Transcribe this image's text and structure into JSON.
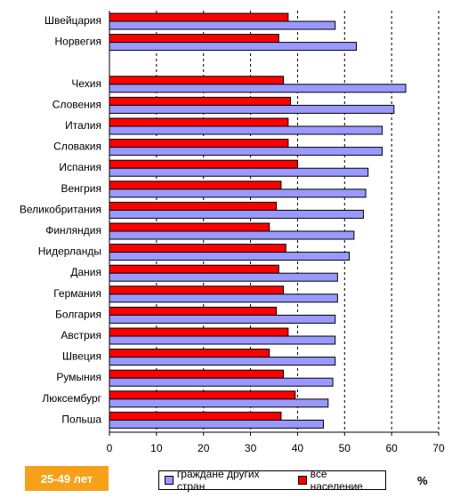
{
  "chart_data": {
    "type": "bar",
    "orientation": "horizontal",
    "categories": [
      "Швейцария",
      "Норвегия",
      "",
      "Чехия",
      "Словения",
      "Италия",
      "Словакия",
      "Испания",
      "Венгрия",
      "Великобритания",
      "Финляндия",
      "Нидерланды",
      "Дания",
      "Германия",
      "Болгария",
      "Австрия",
      "Швеция",
      "Румыния",
      "Люксембург",
      "Польша"
    ],
    "series": [
      {
        "name": "все население",
        "color": "#ff0000",
        "values": [
          38,
          36,
          null,
          37,
          38.5,
          38,
          38,
          40,
          36.5,
          35.5,
          34,
          37.5,
          36,
          37,
          35.5,
          38,
          34,
          37,
          39.5,
          36.5
        ]
      },
      {
        "name": "граждане других стран",
        "color": "#9999ff",
        "values": [
          48,
          52.5,
          null,
          63,
          60.5,
          58,
          58,
          55,
          54.5,
          54,
          52,
          51,
          48.5,
          48.5,
          48,
          48,
          48,
          47.5,
          46.5,
          45.5
        ]
      }
    ],
    "xticks": [
      "0",
      "10",
      "20",
      "30",
      "40",
      "50",
      "60",
      "70"
    ],
    "xlim": [
      0,
      70
    ],
    "grid": "vertical dashed",
    "legend_position": "bottom"
  },
  "badge": {
    "label": "25-49 лет",
    "color": "#f7a11b"
  },
  "unit_label": "%",
  "legend": {
    "foreign_label": "граждане других стран",
    "all_label": "все население"
  }
}
